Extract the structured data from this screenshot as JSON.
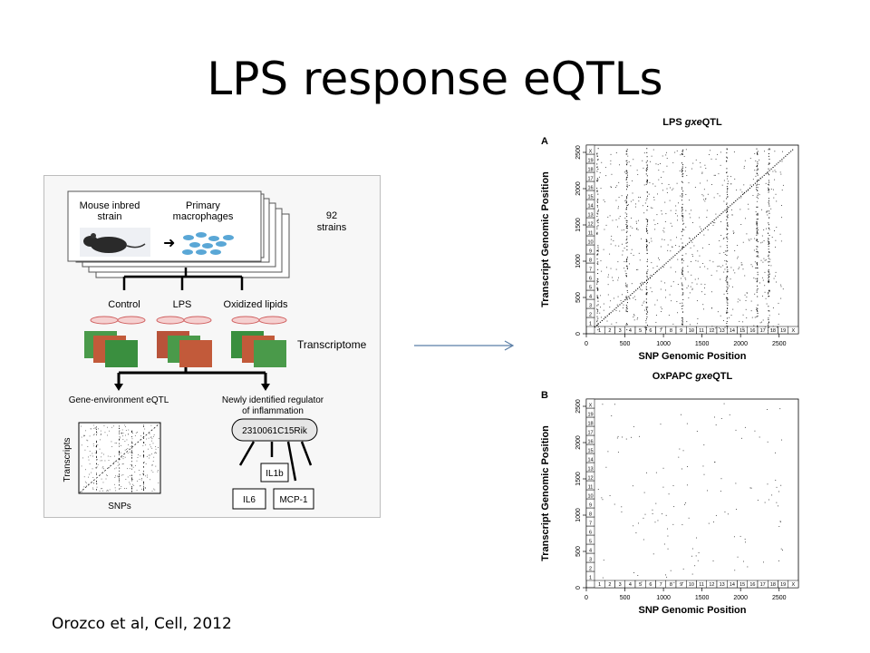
{
  "slide": {
    "title": "LPS response eQTLs",
    "citation": "Orozco et al, Cell, 2012"
  },
  "schematic": {
    "mouse_label_1": "Mouse inbred",
    "mouse_label_2": "strain",
    "macrophage_label_1": "Primary",
    "macrophage_label_2": "macrophages",
    "strains_count": "92",
    "strains_label": "strains",
    "conditions": [
      "Control",
      "LPS",
      "Oxidized lipids"
    ],
    "transcriptome_label": "Transcriptome",
    "eqtl_label": "Gene-environment eQTL",
    "regulator_label_1": "Newly identified regulator",
    "regulator_label_2": "of inflammation",
    "gene_name": "2310061C15Rik",
    "targets": [
      "IL1b",
      "IL6",
      "MCP-1"
    ],
    "mini_plot_xlabel": "SNPs",
    "mini_plot_ylabel": "Transcripts"
  },
  "chart_data": [
    {
      "type": "scatter",
      "panel_letter": "A",
      "title_prefix": "LPS ",
      "title_italic": "gxe",
      "title_suffix": "QTL",
      "xlabel": "SNP Genomic Position",
      "ylabel": "Transcript Genomic Position",
      "xlim": [
        0,
        2750
      ],
      "ylim": [
        0,
        2600
      ],
      "xticks": [
        0,
        500,
        1000,
        1500,
        2000,
        2500
      ],
      "yticks": [
        0,
        500,
        1000,
        1500,
        2000,
        2500
      ],
      "chromosomes": [
        "1",
        "2",
        "3",
        "4",
        "5",
        "6",
        "7",
        "8",
        "9",
        "10",
        "11",
        "12",
        "13",
        "14",
        "15",
        "16",
        "17",
        "18",
        "19",
        "X"
      ],
      "density": "dense",
      "diagonal": true,
      "hotspot_columns_x": [
        140,
        520,
        780,
        1240,
        1820,
        2210,
        2360
      ],
      "grid": false
    },
    {
      "type": "scatter",
      "panel_letter": "B",
      "title_prefix": "OxPAPC ",
      "title_italic": "gxe",
      "title_suffix": "QTL",
      "xlabel": "SNP Genomic Position",
      "ylabel": "Transcript Genomic Position",
      "xlim": [
        0,
        2750
      ],
      "ylim": [
        0,
        2600
      ],
      "xticks": [
        0,
        500,
        1000,
        1500,
        2000,
        2500
      ],
      "yticks": [
        0,
        500,
        1000,
        1500,
        2000,
        2500
      ],
      "chromosomes": [
        "1",
        "2",
        "3",
        "4",
        "5",
        "6",
        "7",
        "8",
        "9",
        "10",
        "11",
        "12",
        "13",
        "14",
        "15",
        "16",
        "17",
        "18",
        "19",
        "X"
      ],
      "density": "sparse",
      "diagonal": false,
      "hotspot_columns_x": [],
      "grid": false
    }
  ]
}
